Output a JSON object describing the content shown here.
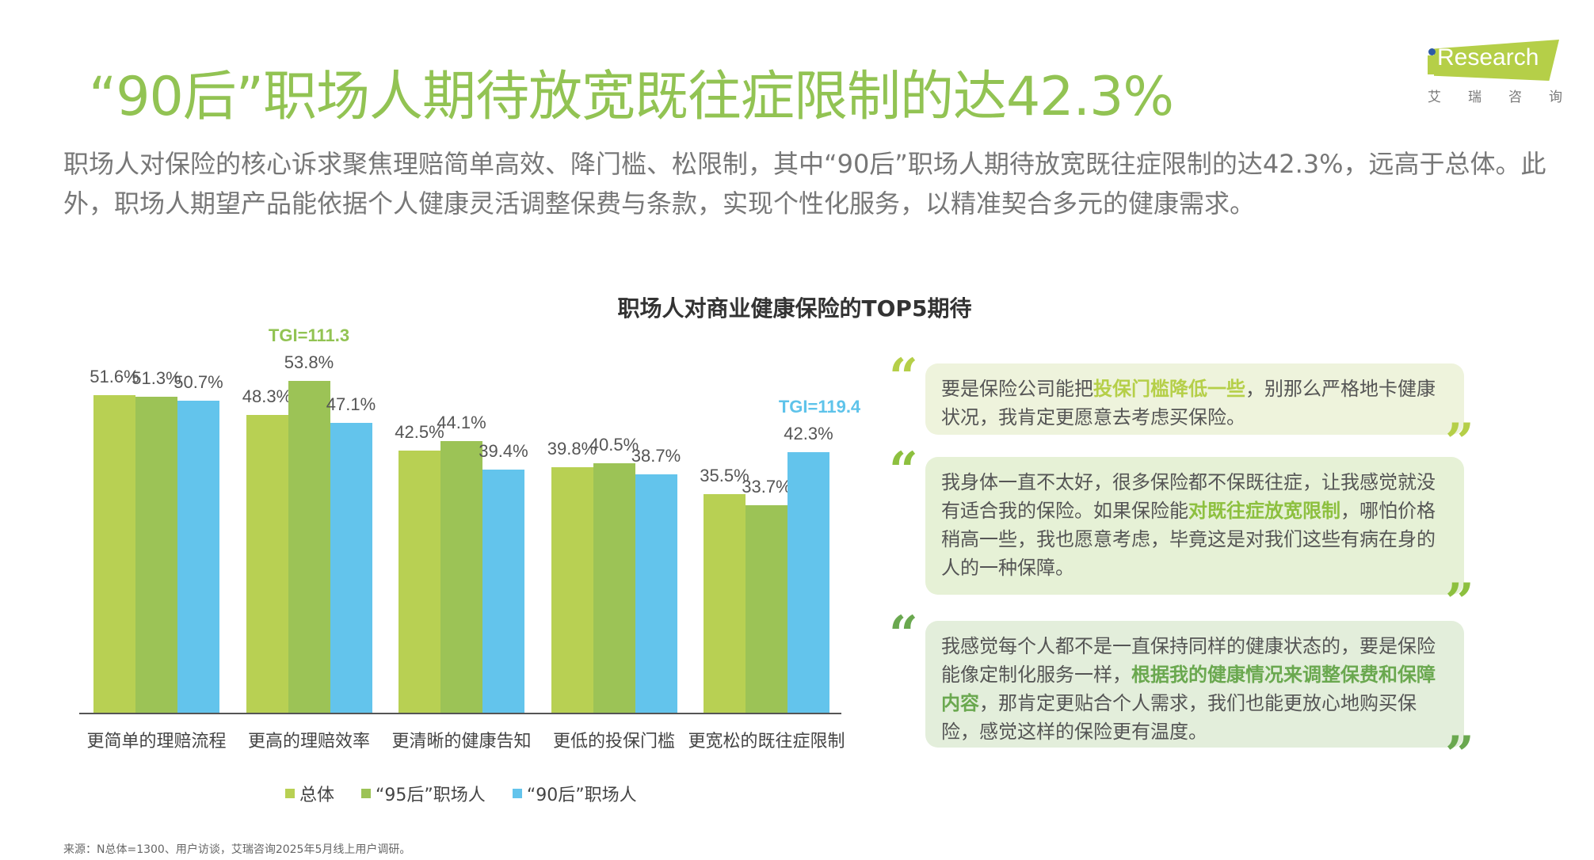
{
  "title": "“90后”职场人期待放宽既往症限制的达42.3%",
  "lead": "职场人对保险的核心诉求聚焦理赔简单高效、降门槛、松限制，其中“90后”职场人期待放宽既往症限制的达42.3%，远高于总体。此外，职场人期望产品能依据个人健康灵活调整保费与条款，实现个性化服务，以精准契合多元的健康需求。",
  "logo": {
    "text": "iResearch",
    "cn": [
      "艾",
      "瑞",
      "咨",
      "询"
    ]
  },
  "colors": {
    "title": "#92c353",
    "total": "#b8d053",
    "gen95": "#9cc356",
    "gen90": "#63c4ec"
  },
  "chart_data": {
    "type": "bar",
    "title": "职场人对商业健康保险的TOP5期待",
    "categories": [
      "更简单的理赔流程",
      "更高的理赔效率",
      "更清晰的健康告知",
      "更低的投保门槛",
      "更宽松的既往症限制"
    ],
    "series": [
      {
        "name": "总体",
        "values": [
          51.6,
          48.3,
          42.5,
          39.8,
          35.5
        ],
        "labels": [
          "51.6%",
          "48.3%",
          "42.5%",
          "39.8%",
          "35.5%"
        ]
      },
      {
        "name": "“95后”职场人",
        "values": [
          51.3,
          53.8,
          44.1,
          40.5,
          33.7
        ],
        "labels": [
          "51.3%",
          "53.8%",
          "44.1%",
          "40.5%",
          "33.7%"
        ]
      },
      {
        "name": "“90后”职场人",
        "values": [
          50.7,
          47.1,
          39.4,
          38.7,
          42.3
        ],
        "labels": [
          "50.7%",
          "47.1%",
          "39.4%",
          "38.7%",
          "42.3%"
        ]
      }
    ],
    "annotations": [
      {
        "text": "TGI=111.3",
        "category": "更高的理赔效率",
        "series": "“95后”职场人",
        "color": "#92c353"
      },
      {
        "text": "TGI=119.4",
        "category": "更宽松的既往症限制",
        "series": "“90后”职场人",
        "color": "#5ec3ea"
      }
    ],
    "ylim": [
      0,
      60
    ],
    "grid": false,
    "legend": "bottom"
  },
  "quotes": [
    {
      "bg": "#eef3dc",
      "accent": "#b5cf48",
      "segments": [
        {
          "text": "要是保险公司能把",
          "hl": false
        },
        {
          "text": "投保门槛降低一些",
          "hl": true
        },
        {
          "text": "，别那么严格地卡健康状况，我肯定更愿意去考虑买保险。",
          "hl": false
        }
      ]
    },
    {
      "bg": "#e6f1d6",
      "accent": "#8dc03f",
      "segments": [
        {
          "text": "我身体一直不太好，很多保险都不保既往症，让我感觉就没有适合我的保险。如果保险能",
          "hl": false
        },
        {
          "text": "对既往症放宽限制",
          "hl": true
        },
        {
          "text": "，哪怕价格稍高一些，我也愿意考虑，毕竟这是对我们这些有病在身的人的一种保障。",
          "hl": false
        }
      ]
    },
    {
      "bg": "#e3eedb",
      "accent": "#6aa84f",
      "segments": [
        {
          "text": "我感觉每个人都不是一直保持同样的健康状态的，要是保险能像定制化服务一样，",
          "hl": false
        },
        {
          "text": "根据我的健康情况来调整保费和保障内容",
          "hl": true
        },
        {
          "text": "，那肯定更贴合个人需求，我们也能更放心地购买保险，感觉这样的保险更有温度。",
          "hl": false
        }
      ]
    }
  ],
  "source": "来源：N总体=1300、用户访谈，艾瑞咨询2025年5月线上用户调研。"
}
